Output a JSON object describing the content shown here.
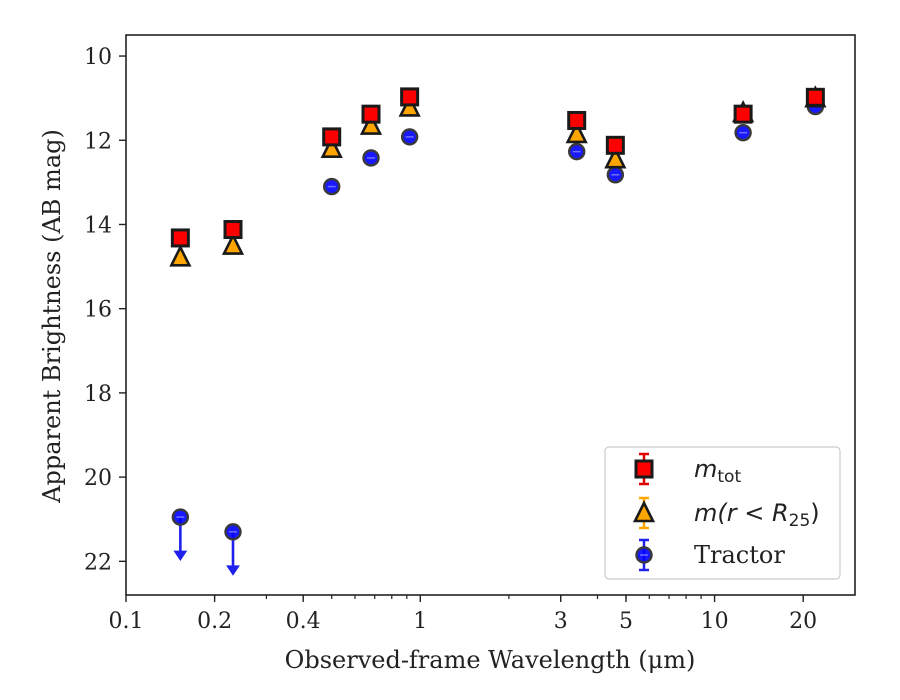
{
  "chart_data": {
    "type": "scatter",
    "xlabel": "Observed-frame Wavelength (μm)",
    "ylabel": "Apparent Brightness (AB mag)",
    "xscale": "log",
    "xlim": [
      0.1,
      30
    ],
    "ylim": [
      22.8,
      9.5
    ],
    "y_inverted": true,
    "xticks": [
      0.1,
      0.2,
      0.4,
      1,
      3,
      5,
      10,
      20
    ],
    "xtick_labels": [
      "0.1",
      "0.2",
      "0.4",
      "1",
      "3",
      "5",
      "10",
      "20"
    ],
    "yticks": [
      10,
      12,
      14,
      16,
      18,
      20,
      22
    ],
    "ytick_labels": [
      "10",
      "12",
      "14",
      "16",
      "18",
      "20",
      "22"
    ],
    "grid": false,
    "legend_position": "lower right",
    "series": [
      {
        "name": "m_tot",
        "legend_label": {
          "main": "m",
          "sub": "tot"
        },
        "marker": "square",
        "color": "#ff0000",
        "edgecolor": "#1a1a1a",
        "x": [
          0.153,
          0.231,
          0.5,
          0.68,
          0.92,
          3.4,
          4.6,
          12.5,
          22.0
        ],
        "y": [
          14.32,
          14.12,
          11.92,
          11.38,
          10.97,
          11.53,
          12.12,
          11.38,
          10.98
        ]
      },
      {
        "name": "m(r<R25)",
        "legend_label": {
          "main": "m(r < R",
          "sub": "25",
          "tail": ")"
        },
        "marker": "triangle",
        "color": "#ffa500",
        "edgecolor": "#1a1a1a",
        "x": [
          0.153,
          0.231,
          0.5,
          0.68,
          0.92,
          3.4,
          4.6,
          12.5,
          22.0
        ],
        "y": [
          14.78,
          14.5,
          12.2,
          11.65,
          11.22,
          11.85,
          12.45,
          11.35,
          11.0
        ]
      },
      {
        "name": "Tractor",
        "legend_label": {
          "main": "Tractor"
        },
        "marker": "circle",
        "color": "#0000ff",
        "edgecolor": "#3a3a3a",
        "x": [
          0.153,
          0.231,
          0.5,
          0.68,
          0.92,
          3.4,
          4.6,
          12.5,
          22.0
        ],
        "y": [
          20.95,
          21.3,
          13.1,
          12.42,
          11.92,
          12.27,
          12.82,
          11.82,
          11.2
        ],
        "upper_limits": [
          true,
          true,
          false,
          false,
          false,
          false,
          false,
          false,
          false
        ]
      }
    ]
  }
}
